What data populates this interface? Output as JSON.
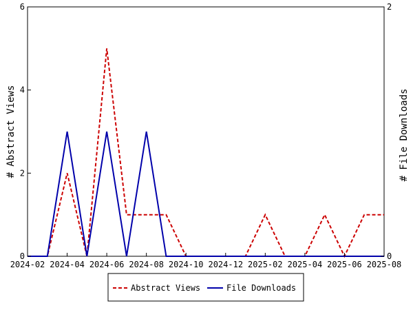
{
  "chart_data": {
    "type": "line",
    "x": [
      "2024-02",
      "2024-03",
      "2024-04",
      "2024-05",
      "2024-06",
      "2024-07",
      "2024-08",
      "2024-09",
      "2024-10",
      "2024-11",
      "2024-12",
      "2025-01",
      "2025-02",
      "2025-03",
      "2025-04",
      "2025-05",
      "2025-06",
      "2025-07",
      "2025-08"
    ],
    "x_ticks": [
      "2024-02",
      "2024-04",
      "2024-06",
      "2024-08",
      "2024-10",
      "2024-12",
      "2025-02",
      "2025-04",
      "2025-06",
      "2025-08"
    ],
    "series": [
      {
        "name": "Abstract Views",
        "axis": "left",
        "color": "#cc0000",
        "dash": "dashed",
        "values": [
          0,
          0,
          2,
          0,
          5,
          1,
          1,
          1,
          0,
          0,
          0,
          0,
          1,
          0,
          0,
          1,
          0,
          1,
          1
        ]
      },
      {
        "name": "File Downloads",
        "axis": "right",
        "color": "#0000aa",
        "dash": "solid",
        "values": [
          0,
          0,
          1,
          0,
          1,
          0,
          1,
          0,
          0,
          0,
          0,
          0,
          0,
          0,
          0,
          0,
          0,
          0,
          0
        ]
      }
    ],
    "ylabel_left": "# Abstract Views",
    "ylabel_right": "# File Downloads",
    "ylim_left": [
      0,
      6
    ],
    "ylim_right": [
      0,
      2
    ],
    "yticks_left": [
      "0",
      "2",
      "4",
      "6"
    ],
    "yticks_right": [
      "0",
      "2"
    ],
    "grid": false,
    "legend_placement": "bottom-center"
  }
}
